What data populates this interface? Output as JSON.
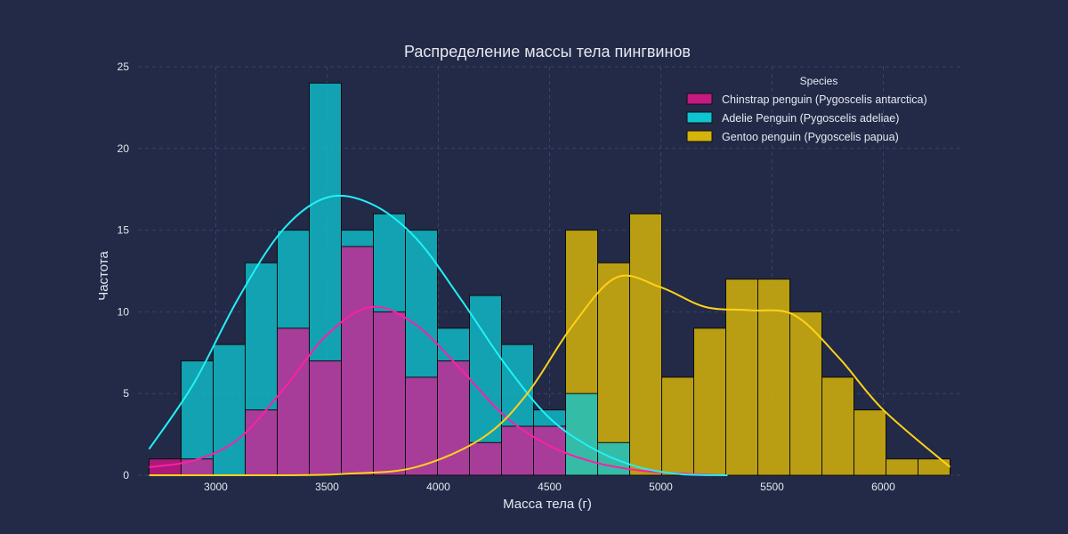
{
  "chart_data": {
    "type": "bar",
    "title": "Распределение массы тела пингвинов",
    "xlabel": "Масса тела (г)",
    "ylabel": "Частота",
    "xlim": [
      2650,
      6350
    ],
    "ylim": [
      0,
      25
    ],
    "xticks": [
      3000,
      3500,
      4000,
      4500,
      5000,
      5500,
      6000
    ],
    "yticks": [
      0,
      5,
      10,
      15,
      20,
      25
    ],
    "grid": true,
    "legend": {
      "title": "Species",
      "placement": "top-right",
      "entries": [
        "Chinstrap penguin (Pygoscelis antarctica)",
        "Adelie Penguin (Pygoscelis adeliae)",
        "Gentoo penguin (Pygoscelis papua)"
      ]
    },
    "bins": {
      "start": 2700,
      "width": 144,
      "count": 25
    },
    "series": [
      {
        "name": "Chinstrap penguin (Pygoscelis antarctica)",
        "color": "#e0158f",
        "counts": [
          1,
          1,
          0,
          4,
          9,
          7,
          14,
          10,
          6,
          7,
          2,
          3,
          3,
          0,
          0,
          0,
          0,
          0,
          0,
          0,
          0,
          0,
          0,
          0,
          0
        ],
        "kde": [
          [
            2700,
            0.5
          ],
          [
            2900,
            0.9
          ],
          [
            3100,
            2.2
          ],
          [
            3300,
            5.2
          ],
          [
            3500,
            8.6
          ],
          [
            3700,
            10.3
          ],
          [
            3900,
            9.2
          ],
          [
            4100,
            6.5
          ],
          [
            4300,
            3.6
          ],
          [
            4500,
            1.8
          ],
          [
            4700,
            0.8
          ],
          [
            4900,
            0.3
          ],
          [
            5100,
            0.1
          ],
          [
            5300,
            0
          ]
        ]
      },
      {
        "name": "Adelie Penguin (Pygoscelis adeliae)",
        "color": "#0ec4d1",
        "counts": [
          0,
          7,
          8,
          13,
          15,
          24,
          15,
          16,
          15,
          9,
          11,
          8,
          4,
          5,
          2,
          0,
          0,
          0,
          0,
          0,
          0,
          0,
          0,
          0,
          0
        ],
        "kde": [
          [
            2700,
            1.6
          ],
          [
            2900,
            5.6
          ],
          [
            3100,
            10.8
          ],
          [
            3300,
            15.0
          ],
          [
            3500,
            17.0
          ],
          [
            3700,
            16.6
          ],
          [
            3900,
            14.5
          ],
          [
            4100,
            10.8
          ],
          [
            4300,
            6.8
          ],
          [
            4500,
            3.5
          ],
          [
            4700,
            1.6
          ],
          [
            4900,
            0.5
          ],
          [
            5100,
            0.05
          ],
          [
            5300,
            0
          ]
        ]
      },
      {
        "name": "Gentoo penguin (Pygoscelis papua)",
        "color": "#d4b30b",
        "counts": [
          0,
          0,
          0,
          0,
          0,
          0,
          0,
          0,
          0,
          0,
          0,
          0,
          0,
          15,
          13,
          16,
          6,
          9,
          12,
          12,
          10,
          6,
          4,
          1,
          1
        ],
        "kde": [
          [
            2700,
            0
          ],
          [
            3300,
            0
          ],
          [
            3600,
            0.1
          ],
          [
            3900,
            0.5
          ],
          [
            4200,
            2.3
          ],
          [
            4400,
            5.0
          ],
          [
            4600,
            9.1
          ],
          [
            4800,
            12.1
          ],
          [
            5000,
            11.5
          ],
          [
            5200,
            10.3
          ],
          [
            5400,
            10.1
          ],
          [
            5600,
            9.8
          ],
          [
            5800,
            7.2
          ],
          [
            6000,
            4.0
          ],
          [
            6300,
            0.5
          ]
        ]
      }
    ]
  }
}
